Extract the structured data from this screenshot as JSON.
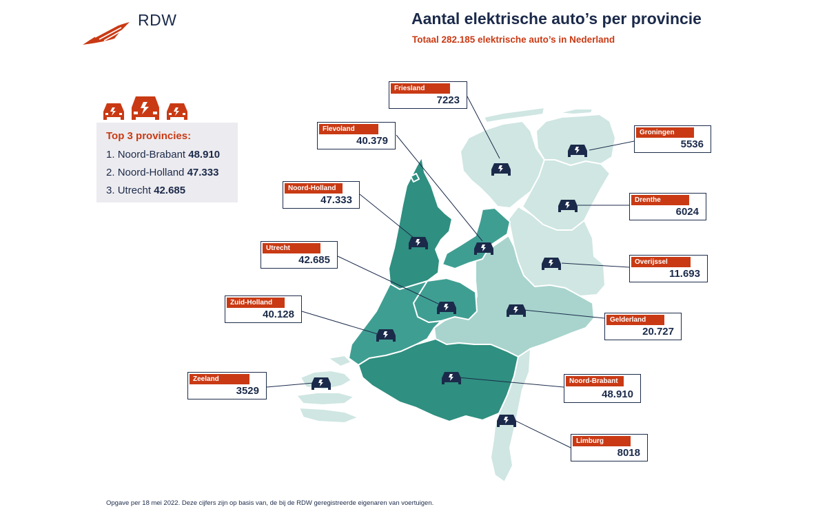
{
  "header": {
    "logo_text": "RDW",
    "title": "Aantal elektrische auto’s per provincie",
    "subtitle": "Totaal 282.185 elektrische auto’s in Nederland"
  },
  "top3": {
    "title": "Top 3 provincies:",
    "items": [
      {
        "rank": "1.",
        "name": "Noord-Brabant",
        "value": "48.910"
      },
      {
        "rank": "2.",
        "name": "Noord-Holland",
        "value": "47.333"
      },
      {
        "rank": "3.",
        "name": "Utrecht",
        "value": "42.685"
      }
    ]
  },
  "provinces": [
    {
      "name": "Friesland",
      "value": "7223"
    },
    {
      "name": "Groningen",
      "value": "5536"
    },
    {
      "name": "Drenthe",
      "value": "6024"
    },
    {
      "name": "Overijssel",
      "value": "11.693"
    },
    {
      "name": "Flevoland",
      "value": "40.379"
    },
    {
      "name": "Noord-Holland",
      "value": "47.333"
    },
    {
      "name": "Utrecht",
      "value": "42.685"
    },
    {
      "name": "Zuid-Holland",
      "value": "40.128"
    },
    {
      "name": "Gelderland",
      "value": "20.727"
    },
    {
      "name": "Zeeland",
      "value": "3529"
    },
    {
      "name": "Noord-Brabant",
      "value": "48.910"
    },
    {
      "name": "Limburg",
      "value": "8018"
    }
  ],
  "footnote": "Opgave per 18 mei 2022. Deze cijfers zijn op basis van, de bij de RDW geregistreerde eigenaren van voertuigen.",
  "colors": {
    "brand": "#c93a14",
    "navy": "#1b2a4a",
    "dark_teal": "#2f8f80",
    "mid_teal": "#3f9e92",
    "light_teal": "#a8d4cd",
    "pale_teal": "#cfe6e2",
    "box_bg": "#ecebef"
  },
  "icons": {
    "province_marker": "electric-car-icon",
    "logo": "rdw-wing-logo"
  }
}
